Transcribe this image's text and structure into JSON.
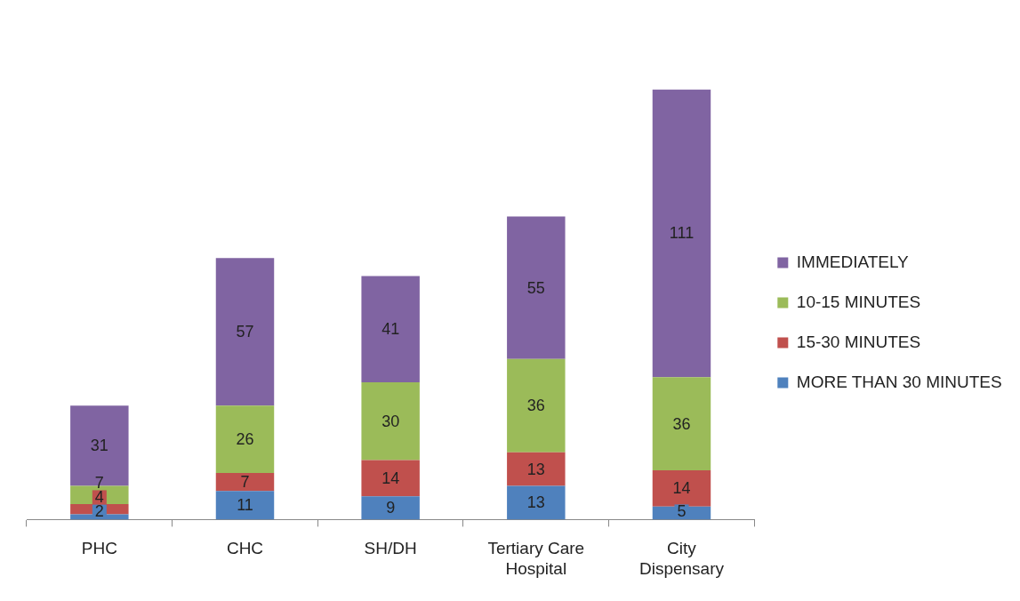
{
  "chart_data": {
    "type": "bar",
    "stacked": true,
    "data_labels": true,
    "legend": "right",
    "grid": false,
    "tick_labels": "x",
    "categories": [
      "PHC",
      "CHC",
      "SH/DH",
      "Tertiary Care Hospital",
      "City Dispensary"
    ],
    "series": [
      {
        "name": "MORE THAN 30 MINUTES",
        "color": "#4f81bd",
        "values": [
          2,
          11,
          9,
          13,
          5
        ]
      },
      {
        "name": "15-30 MINUTES",
        "color": "#c0504d",
        "values": [
          4,
          7,
          14,
          13,
          14
        ]
      },
      {
        "name": "10-15 MINUTES",
        "color": "#9bbb59",
        "values": [
          7,
          26,
          30,
          36,
          36
        ]
      },
      {
        "name": "IMMEDIATELY",
        "color": "#8064a2",
        "values": [
          31,
          57,
          41,
          55,
          111
        ]
      }
    ]
  }
}
